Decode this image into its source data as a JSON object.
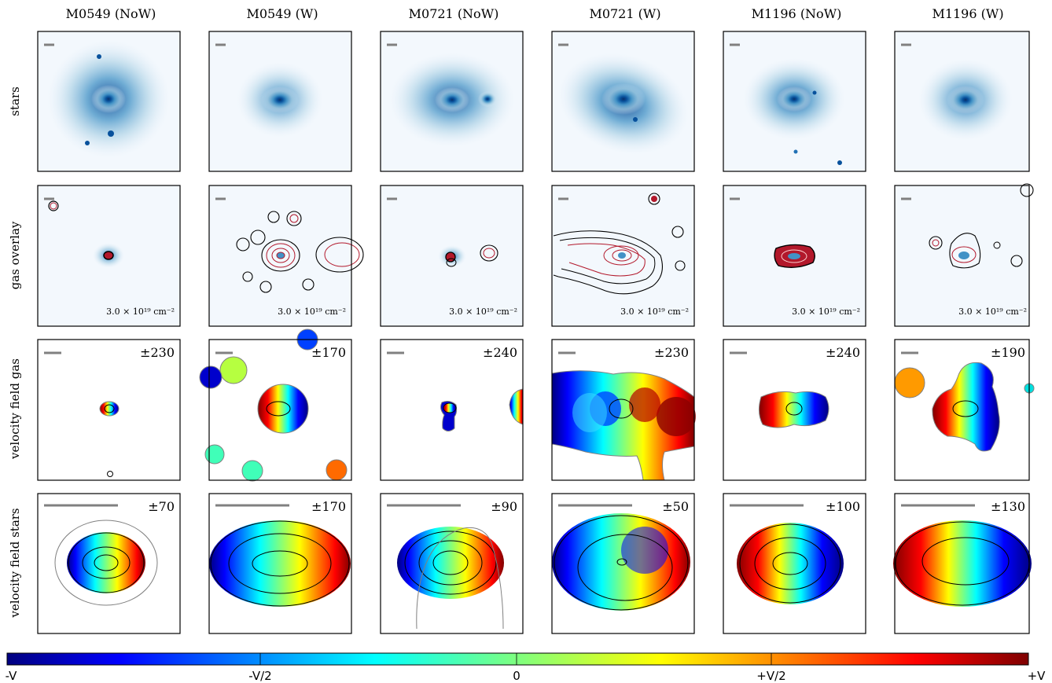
{
  "columns": [
    "M0549 (NoW)",
    "M0549 (W)",
    "M0721 (NoW)",
    "M0721 (W)",
    "M1196 (NoW)",
    "M1196 (W)"
  ],
  "rows": [
    "stars",
    "gas overlay",
    "velocity field gas",
    "velocity field stars"
  ],
  "gas_overlay_note": "3.0 × 10¹⁹ cm⁻²",
  "velocity_gas_labels": [
    "±230",
    "±170",
    "±240",
    "±230",
    "±240",
    "±190"
  ],
  "velocity_stars_labels": [
    "±70",
    "±170",
    "±90",
    "±50",
    "±100",
    "±130"
  ],
  "colorbar": {
    "ticks": [
      "-V",
      "-V/2",
      "0",
      "+V/2",
      "+V"
    ],
    "colors": [
      "#00007f",
      "#0000ff",
      "#007fff",
      "#00ffff",
      "#7fff7f",
      "#ffff00",
      "#ff7f00",
      "#ff0000",
      "#7f0000"
    ]
  },
  "colors": {
    "stars_map": "#08519c",
    "stars_bg": "#f3f8fd",
    "scalebar": "#808080",
    "contour_outer": "#000000",
    "contour_inner": "#b2182b"
  }
}
